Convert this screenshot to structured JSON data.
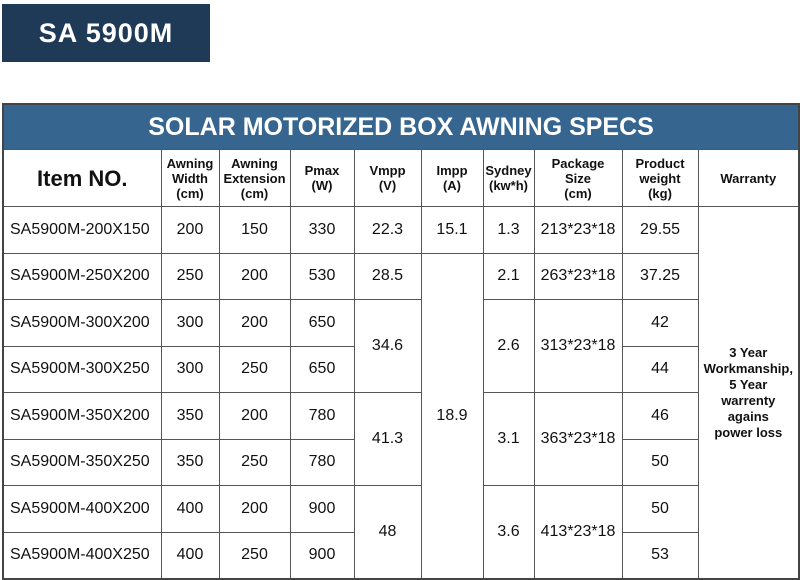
{
  "badge": "SA 5900M",
  "table": {
    "title": "SOLAR MOTORIZED BOX AWNING SPECS",
    "header": [
      [
        "Item NO."
      ],
      [
        "Awning",
        "Width",
        "(cm)"
      ],
      [
        "Awning",
        "Extension",
        "(cm)"
      ],
      [
        "Pmax",
        "(W)"
      ],
      [
        "Vmpp",
        "(V)"
      ],
      [
        "Impp",
        "(A)"
      ],
      [
        "Sydney",
        "(kw*h)"
      ],
      [
        "Package",
        "Size",
        "(cm)"
      ],
      [
        "Product",
        "weight",
        "(kg)"
      ],
      [
        "Warranty"
      ]
    ],
    "rows": [
      [
        "SA5900M-200X150",
        200,
        150,
        330,
        22.3,
        15.1,
        1.3,
        "213*23*18",
        29.55
      ],
      [
        "SA5900M-250X200",
        250,
        200,
        530,
        28.5,
        18.9,
        2.1,
        "263*23*18",
        37.25
      ],
      [
        "SA5900M-300X200",
        300,
        200,
        650,
        34.6,
        2.6,
        "313*23*18",
        42
      ],
      [
        "SA5900M-300X250",
        300,
        250,
        650,
        44
      ],
      [
        "SA5900M-350X200",
        350,
        200,
        780,
        41.3,
        3.1,
        "363*23*18",
        46
      ],
      [
        "SA5900M-350X250",
        350,
        250,
        780,
        50
      ],
      [
        "SA5900M-400X200",
        400,
        200,
        900,
        48,
        3.6,
        "413*23*18",
        50
      ],
      [
        "SA5900M-400X250",
        400,
        250,
        900,
        53
      ]
    ],
    "warranty": [
      "3 Year",
      "Workmanship,",
      "5 Year",
      "warrenty",
      "agains",
      "power loss"
    ]
  }
}
